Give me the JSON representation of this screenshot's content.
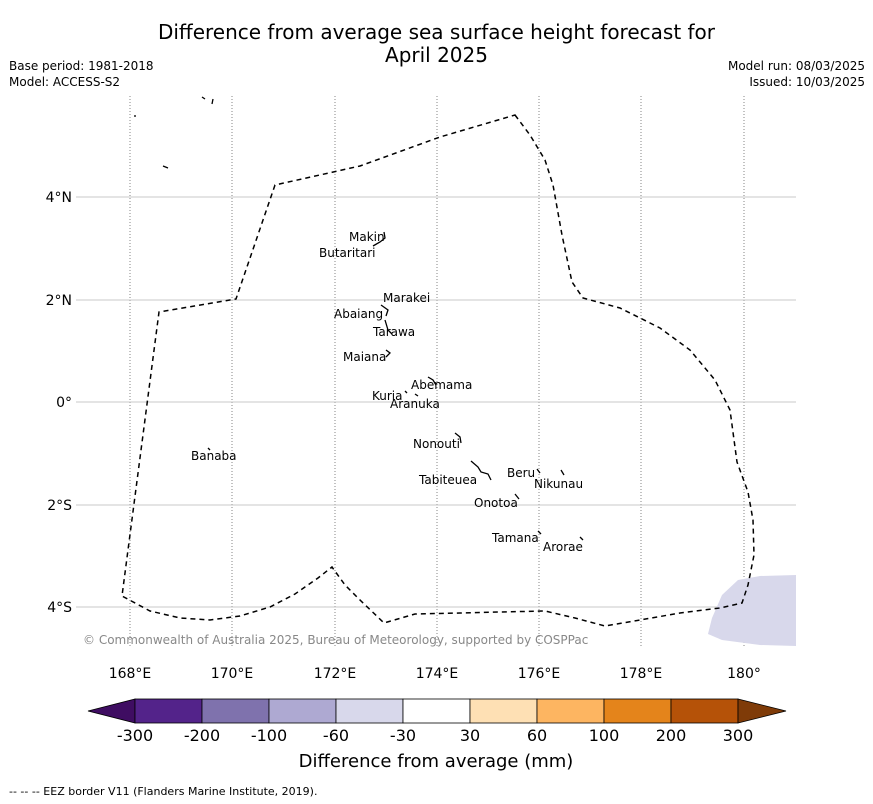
{
  "title_line1": "Difference from average sea surface height forecast for",
  "title_line2": "April 2025",
  "meta": {
    "base_period": "Base period: 1981-2018",
    "model": "Model: ACCESS-S2",
    "model_run": "Model run: 08/03/2025",
    "issued": "Issued: 10/03/2025"
  },
  "map": {
    "lon_ticks": [
      "168°E",
      "170°E",
      "172°E",
      "174°E",
      "176°E",
      "178°E",
      "180°"
    ],
    "lat_ticks": [
      "4°N",
      "2°N",
      "0°",
      "2°S",
      "4°S"
    ],
    "islands": [
      {
        "name": "Makin",
        "lon": 173.0,
        "lat": 3.3
      },
      {
        "name": "Butaritari",
        "lon": 172.8,
        "lat": 3.1
      },
      {
        "name": "Marakei",
        "lon": 173.3,
        "lat": 2.0
      },
      {
        "name": "Abaiang",
        "lon": 172.9,
        "lat": 1.8
      },
      {
        "name": "Tarawa",
        "lon": 173.0,
        "lat": 1.4
      },
      {
        "name": "Maiana",
        "lon": 173.0,
        "lat": 1.0
      },
      {
        "name": "Abemama",
        "lon": 173.9,
        "lat": 0.4
      },
      {
        "name": "Kuria",
        "lon": 173.4,
        "lat": 0.2
      },
      {
        "name": "Aranuka",
        "lon": 173.6,
        "lat": 0.2
      },
      {
        "name": "Nonouti",
        "lon": 174.4,
        "lat": -0.6
      },
      {
        "name": "Banaba",
        "lon": 169.5,
        "lat": -0.9
      },
      {
        "name": "Beru",
        "lon": 176.0,
        "lat": -1.3
      },
      {
        "name": "Nikunau",
        "lon": 176.5,
        "lat": -1.3
      },
      {
        "name": "Tabiteuea",
        "lon": 174.8,
        "lat": -1.3
      },
      {
        "name": "Onotoa",
        "lon": 175.6,
        "lat": -1.8
      },
      {
        "name": "Tamana",
        "lon": 176.0,
        "lat": -2.5
      },
      {
        "name": "Arorae",
        "lon": 176.8,
        "lat": -2.7
      }
    ],
    "copyright": "© Commonwealth of Australia 2025, Bureau of Meteorology, supported by COSPPac"
  },
  "colorbar": {
    "label": "Difference from average (mm)",
    "ticks": [
      "-300",
      "-200",
      "-100",
      "-60",
      "-30",
      "30",
      "60",
      "100",
      "200",
      "300"
    ],
    "colors": {
      "below": "#3f0d62",
      "bins": [
        "#53238a",
        "#7f72ad",
        "#aea9d2",
        "#d8d8eb",
        "#ffffff",
        "#fee0b4",
        "#fdb561",
        "#e4841b",
        "#b55208"
      ],
      "above": "#7f3b08"
    }
  },
  "footer": "--  --  -- EEZ border V11 (Flanders Marine Institute, 2019)."
}
